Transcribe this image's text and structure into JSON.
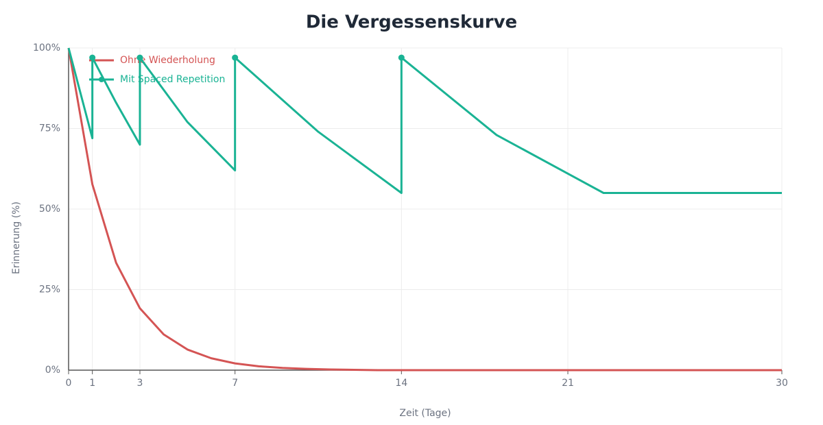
{
  "chart_data": {
    "type": "line",
    "title": "Die Vergessenskurve",
    "x_label": "Zeit (Tage)",
    "y_label": "Erinnerung (%)",
    "xlim": [
      0,
      30
    ],
    "xticks": [
      0,
      1,
      3,
      7,
      14,
      21,
      30
    ],
    "ylim": [
      0,
      100
    ],
    "yticks": [
      {
        "value": 0,
        "label": "0%"
      },
      {
        "value": 25,
        "label": "25%"
      },
      {
        "value": 50,
        "label": "50%"
      },
      {
        "value": 75,
        "label": "75%"
      },
      {
        "value": 100,
        "label": "100%"
      }
    ],
    "grid": true,
    "legend": "top-left",
    "series": [
      {
        "name": "Ohne Wiederholung",
        "color": "#d45454",
        "markers": false,
        "x": [
          0,
          1,
          2,
          3,
          4,
          5,
          6,
          7,
          8,
          9,
          10,
          11,
          12,
          13,
          14,
          15,
          16,
          17,
          18,
          19,
          20,
          21,
          22,
          23,
          24,
          25,
          26,
          27,
          28,
          29,
          30
        ],
        "values": [
          100,
          57.7,
          33.3,
          19.2,
          11.1,
          6.4,
          3.7,
          2.1,
          1.2,
          0.7,
          0.4,
          0.2,
          0.1,
          0,
          0,
          0,
          0,
          0,
          0,
          0,
          0,
          0,
          0,
          0,
          0,
          0,
          0,
          0,
          0,
          0,
          0
        ]
      },
      {
        "name": "Mit Spaced Repetition",
        "color": "#1ab394",
        "markers": true,
        "x": [
          0,
          1,
          1,
          2,
          3,
          3,
          5,
          7,
          7,
          10.5,
          14,
          14,
          18,
          22.5,
          30
        ],
        "values": [
          100,
          72,
          97,
          83,
          70,
          97,
          77,
          62,
          97,
          74,
          55,
          97,
          73,
          55,
          55
        ]
      }
    ]
  }
}
